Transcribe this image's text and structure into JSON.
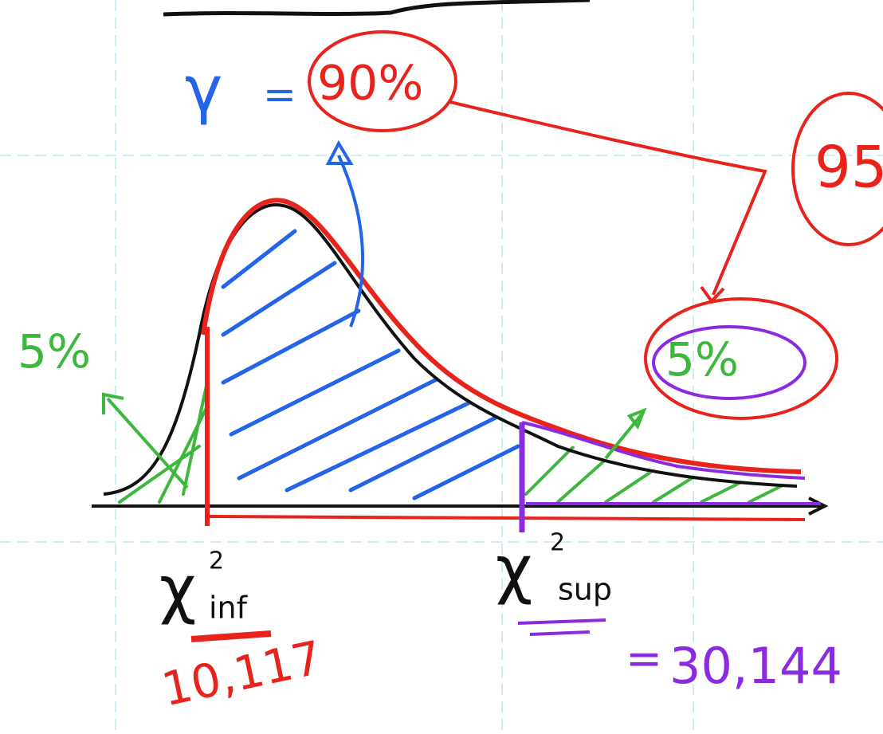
{
  "confidence": {
    "symbol": "γ",
    "equals": "=",
    "value": "90%"
  },
  "total_partial": "95",
  "left_tail": "5%",
  "right_tail": "5%",
  "lower_quantile": {
    "symbol": "χ",
    "exponent": "2",
    "subscript": "inf",
    "value": "10,117"
  },
  "upper_quantile": {
    "symbol": "χ",
    "exponent": "2",
    "subscript": "sup",
    "equals": "=",
    "value": "30,144"
  }
}
